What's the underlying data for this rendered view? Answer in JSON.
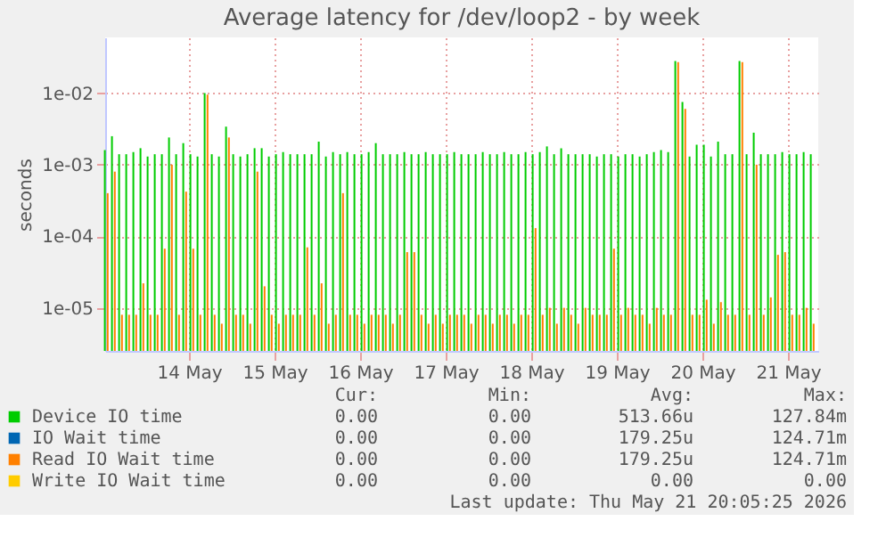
{
  "chart_data": {
    "type": "bar",
    "title": "Average latency for /dev/loop2 - by week",
    "ylabel": "seconds",
    "x": [
      "2026-05-13T01:00",
      "2026-05-13T03:00",
      "2026-05-13T05:00",
      "2026-05-13T07:00",
      "2026-05-13T09:00",
      "2026-05-13T11:00",
      "2026-05-13T13:00",
      "2026-05-13T15:00",
      "2026-05-13T17:00",
      "2026-05-13T19:00",
      "2026-05-13T21:00",
      "2026-05-13T23:00",
      "2026-05-14T01:00",
      "2026-05-14T03:00",
      "2026-05-14T05:00",
      "2026-05-14T07:00",
      "2026-05-14T09:00",
      "2026-05-14T11:00",
      "2026-05-14T13:00",
      "2026-05-14T15:00",
      "2026-05-14T17:00",
      "2026-05-14T19:00",
      "2026-05-14T21:00",
      "2026-05-14T23:00",
      "2026-05-15T01:00",
      "2026-05-15T03:00",
      "2026-05-15T05:00",
      "2026-05-15T07:00",
      "2026-05-15T09:00",
      "2026-05-15T11:00",
      "2026-05-15T13:00",
      "2026-05-15T15:00",
      "2026-05-15T17:00",
      "2026-05-15T19:00",
      "2026-05-15T21:00",
      "2026-05-15T23:00",
      "2026-05-16T01:00",
      "2026-05-16T03:00",
      "2026-05-16T05:00",
      "2026-05-16T07:00",
      "2026-05-16T09:00",
      "2026-05-16T11:00",
      "2026-05-16T13:00",
      "2026-05-16T15:00",
      "2026-05-16T17:00",
      "2026-05-16T19:00",
      "2026-05-16T21:00",
      "2026-05-16T23:00",
      "2026-05-17T01:00",
      "2026-05-17T03:00",
      "2026-05-17T05:00",
      "2026-05-17T07:00",
      "2026-05-17T09:00",
      "2026-05-17T11:00",
      "2026-05-17T13:00",
      "2026-05-17T15:00",
      "2026-05-17T17:00",
      "2026-05-17T19:00",
      "2026-05-17T21:00",
      "2026-05-17T23:00",
      "2026-05-18T01:00",
      "2026-05-18T03:00",
      "2026-05-18T05:00",
      "2026-05-18T07:00",
      "2026-05-18T09:00",
      "2026-05-18T11:00",
      "2026-05-18T13:00",
      "2026-05-18T15:00",
      "2026-05-18T17:00",
      "2026-05-18T19:00",
      "2026-05-18T21:00",
      "2026-05-18T23:00",
      "2026-05-19T01:00",
      "2026-05-19T03:00",
      "2026-05-19T05:00",
      "2026-05-19T07:00",
      "2026-05-19T09:00",
      "2026-05-19T11:00",
      "2026-05-19T13:00",
      "2026-05-19T15:00",
      "2026-05-19T17:00",
      "2026-05-19T19:00",
      "2026-05-19T21:00",
      "2026-05-19T23:00",
      "2026-05-20T01:00",
      "2026-05-20T03:00",
      "2026-05-20T05:00",
      "2026-05-20T07:00",
      "2026-05-20T09:00",
      "2026-05-20T11:00",
      "2026-05-20T13:00",
      "2026-05-20T15:00",
      "2026-05-20T17:00",
      "2026-05-20T19:00",
      "2026-05-20T21:00",
      "2026-05-20T23:00",
      "2026-05-21T01:00",
      "2026-05-21T03:00",
      "2026-05-21T05:00",
      "2026-05-21T07:00"
    ],
    "series": [
      {
        "name": "Device IO time",
        "color": "#00cc00",
        "values": [
          0.0016,
          0.0025,
          0.0014,
          0.0014,
          0.0015,
          0.0017,
          0.0013,
          0.0014,
          0.0014,
          0.0024,
          0.0014,
          0.002,
          0.0014,
          0.0013,
          0.01,
          0.0014,
          0.0013,
          0.0034,
          0.0014,
          0.0013,
          0.0014,
          0.0017,
          0.0017,
          0.0013,
          0.0014,
          0.0015,
          0.0014,
          0.0014,
          0.0014,
          0.0014,
          0.0021,
          0.0013,
          0.0015,
          0.0014,
          0.0015,
          0.0014,
          0.0014,
          0.0015,
          0.002,
          0.0014,
          0.0014,
          0.0014,
          0.0015,
          0.0014,
          0.0014,
          0.0015,
          0.0014,
          0.0014,
          0.0014,
          0.0015,
          0.0014,
          0.0014,
          0.0014,
          0.0015,
          0.0014,
          0.0014,
          0.0015,
          0.0014,
          0.0014,
          0.0015,
          0.0014,
          0.0015,
          0.0018,
          0.0014,
          0.0017,
          0.0014,
          0.0014,
          0.0014,
          0.0014,
          0.0013,
          0.0014,
          0.0014,
          0.0013,
          0.0014,
          0.0014,
          0.0013,
          0.0014,
          0.0015,
          0.0016,
          0.0015,
          0.028,
          0.0075,
          0.0013,
          0.0019,
          0.0019,
          0.0013,
          0.0021,
          0.0014,
          0.0014,
          0.028,
          0.0014,
          0.0028,
          0.0014,
          0.0014,
          0.0014,
          0.0015,
          0.0014,
          0.0014,
          0.0015,
          0.0014
        ]
      },
      {
        "name": "IO Wait time",
        "color": "#0066b3",
        "values": [
          null,
          null,
          null,
          null,
          null,
          null,
          null,
          null,
          null,
          null,
          null,
          null,
          null,
          null,
          null,
          null,
          null,
          null,
          null,
          null,
          null,
          null,
          null,
          null,
          null,
          null,
          null,
          null,
          null,
          null,
          null,
          null,
          null,
          null,
          null,
          null,
          null,
          null,
          null,
          null,
          null,
          null,
          null,
          null,
          null,
          null,
          null,
          null,
          null,
          null,
          null,
          null,
          null,
          null,
          null,
          null,
          null,
          null,
          null,
          null,
          null,
          null,
          null,
          null,
          null,
          null,
          null,
          null,
          null,
          null,
          null,
          null,
          null,
          null,
          null,
          null,
          null,
          null,
          null,
          null,
          null,
          null,
          null,
          null,
          null,
          null,
          null,
          null,
          null,
          null,
          null,
          null,
          null,
          null,
          null,
          null,
          null,
          null,
          null,
          null
        ]
      },
      {
        "name": "Read IO Wait time",
        "color": "#ff8000",
        "values": [
          0.0004,
          0.0008,
          8e-06,
          8e-06,
          8e-06,
          2.2e-05,
          8e-06,
          8e-06,
          6.7e-05,
          0.001,
          8e-06,
          0.00042,
          6.7e-05,
          8e-06,
          0.0095,
          8e-06,
          6e-06,
          0.0024,
          8e-06,
          8e-06,
          6e-06,
          0.0008,
          2e-05,
          8e-06,
          6e-06,
          8e-06,
          8e-06,
          8e-06,
          7e-05,
          8e-06,
          2.2e-05,
          6e-06,
          8e-06,
          0.0004,
          8e-06,
          8e-06,
          6e-06,
          8e-06,
          8e-06,
          8e-06,
          6e-06,
          8e-06,
          6e-05,
          6e-05,
          8e-06,
          6e-06,
          8e-06,
          6e-06,
          8e-06,
          8e-06,
          8e-06,
          6e-06,
          8e-06,
          8e-06,
          6e-06,
          8e-06,
          8e-06,
          6e-06,
          8e-06,
          8e-06,
          0.00013,
          8e-06,
          1e-05,
          6e-06,
          1e-05,
          8e-06,
          6e-06,
          1e-05,
          8e-06,
          8e-06,
          8e-06,
          6.7e-05,
          8e-06,
          1e-05,
          8e-06,
          8e-06,
          6e-06,
          1e-05,
          8e-06,
          8e-06,
          0.027,
          0.006,
          8e-06,
          8e-06,
          1.3e-05,
          6e-06,
          1.2e-05,
          8e-06,
          8e-06,
          0.027,
          8e-06,
          0.001,
          8e-06,
          1.4e-05,
          5.5e-05,
          6e-05,
          8e-06,
          8e-06,
          1e-05,
          6e-06
        ]
      },
      {
        "name": "Write IO Wait time",
        "color": "#ffcc00",
        "values": [
          null,
          null,
          null,
          null,
          null,
          null,
          null,
          null,
          null,
          null,
          null,
          null,
          null,
          null,
          null,
          null,
          null,
          null,
          null,
          null,
          null,
          null,
          null,
          null,
          null,
          null,
          null,
          null,
          null,
          null,
          null,
          null,
          null,
          null,
          null,
          null,
          null,
          null,
          null,
          null,
          null,
          null,
          null,
          null,
          null,
          null,
          null,
          null,
          null,
          null,
          null,
          null,
          null,
          null,
          null,
          null,
          null,
          null,
          null,
          null,
          null,
          null,
          null,
          null,
          null,
          null,
          null,
          null,
          null,
          null,
          null,
          null,
          null,
          null,
          null,
          null,
          null,
          null,
          null,
          null,
          null,
          null,
          null,
          null,
          null,
          null,
          null,
          null,
          null,
          null,
          null,
          null,
          null,
          null,
          null,
          null,
          null,
          null,
          null,
          null
        ]
      }
    ],
    "log": true,
    "ylim": [
      2.5e-06,
      0.06
    ],
    "yticks": [
      {
        "value": 1e-05,
        "label": "1e-05"
      },
      {
        "value": 0.0001,
        "label": "1e-04"
      },
      {
        "value": 0.001,
        "label": "1e-03"
      },
      {
        "value": 0.01,
        "label": "1e-02"
      }
    ],
    "xlim": [
      "2026-05-13T00:30",
      "2026-05-21T08:30"
    ],
    "xticks": [
      {
        "value": "2026-05-14",
        "label": "14 May"
      },
      {
        "value": "2026-05-15",
        "label": "15 May"
      },
      {
        "value": "2026-05-16",
        "label": "16 May"
      },
      {
        "value": "2026-05-17",
        "label": "17 May"
      },
      {
        "value": "2026-05-18",
        "label": "18 May"
      },
      {
        "value": "2026-05-19",
        "label": "19 May"
      },
      {
        "value": "2026-05-20",
        "label": "20 May"
      },
      {
        "value": "2026-05-21",
        "label": "21 May"
      }
    ],
    "grid": true,
    "legend": "bottom left",
    "annotations": [
      "Cur:",
      "Min:",
      "Avg:",
      "Max:",
      "0.00",
      "0.00",
      "513.66u",
      "127.84m",
      "0.00",
      "0.00",
      "179.25u",
      "124.71m",
      "0.00",
      "0.00",
      "179.25u",
      "124.71m",
      "0.00",
      "0.00",
      "0.00",
      "0.00",
      "Last update: Thu May 21 20:05:25 2026"
    ]
  }
}
